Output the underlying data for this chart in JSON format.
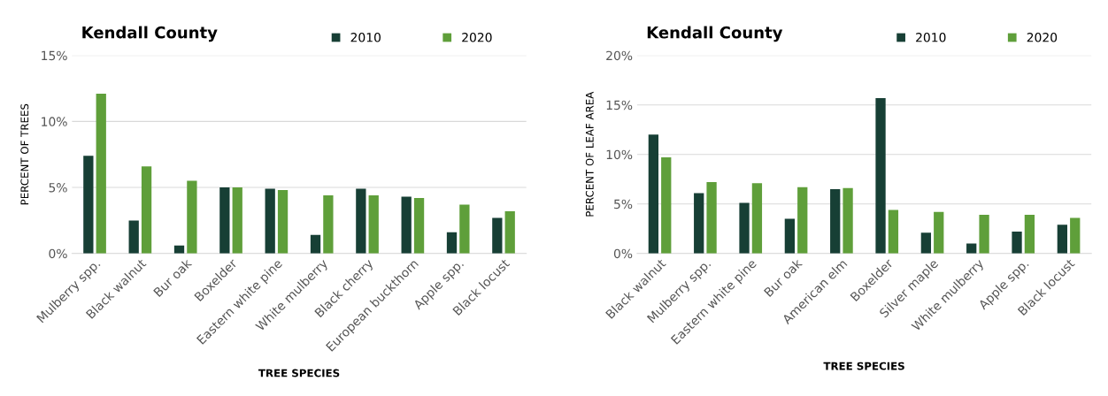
{
  "chart_data": [
    {
      "type": "bar",
      "title": "Kendall County",
      "xlabel": "TREE SPECIES",
      "ylabel": "PERCENT OF TREES",
      "categories": [
        "Mulberry spp.",
        "Black walnut",
        "Bur oak",
        "Boxelder",
        "Eastern white pine",
        "White mulberry",
        "Black cherry",
        "European buckthorn",
        "Apple spp.",
        "Black locust"
      ],
      "series": [
        {
          "name": "2010",
          "color": "#173f35",
          "values": [
            7.4,
            2.5,
            0.6,
            5.0,
            4.9,
            1.4,
            4.9,
            4.3,
            1.6,
            2.7
          ]
        },
        {
          "name": "2020",
          "color": "#5f9f3a",
          "values": [
            12.1,
            6.6,
            5.5,
            5.0,
            4.8,
            4.4,
            4.4,
            4.2,
            3.7,
            3.2
          ]
        }
      ],
      "ylim": [
        0,
        15
      ],
      "yticks": [
        {
          "value": 0,
          "label": "0%"
        },
        {
          "value": 5,
          "label": "5%"
        },
        {
          "value": 10,
          "label": "10%"
        },
        {
          "value": 15,
          "label": "15%"
        }
      ],
      "grid": "y",
      "legend": "top right"
    },
    {
      "type": "bar",
      "title": "Kendall County",
      "xlabel": "TREE SPECIES",
      "ylabel": "PERCENT OF LEAF AREA",
      "categories": [
        "Black walnut",
        "Mulberry spp.",
        "Eastern white pine",
        "Bur oak",
        "American elm",
        "Boxelder",
        "Silver maple",
        "White mulberry",
        "Apple spp.",
        "Black locust"
      ],
      "series": [
        {
          "name": "2010",
          "color": "#173f35",
          "values": [
            12.0,
            6.1,
            5.1,
            3.5,
            6.5,
            15.7,
            2.1,
            1.0,
            2.2,
            2.9
          ]
        },
        {
          "name": "2020",
          "color": "#5f9f3a",
          "values": [
            9.7,
            7.2,
            7.1,
            6.7,
            6.6,
            4.4,
            4.2,
            3.9,
            3.9,
            3.6
          ]
        }
      ],
      "ylim": [
        0,
        20
      ],
      "yticks": [
        {
          "value": 0,
          "label": "0%"
        },
        {
          "value": 5,
          "label": "5%"
        },
        {
          "value": 10,
          "label": "10%"
        },
        {
          "value": 15,
          "label": "15%"
        },
        {
          "value": 20,
          "label": "20%"
        }
      ],
      "grid": "y",
      "legend": "top right"
    }
  ]
}
